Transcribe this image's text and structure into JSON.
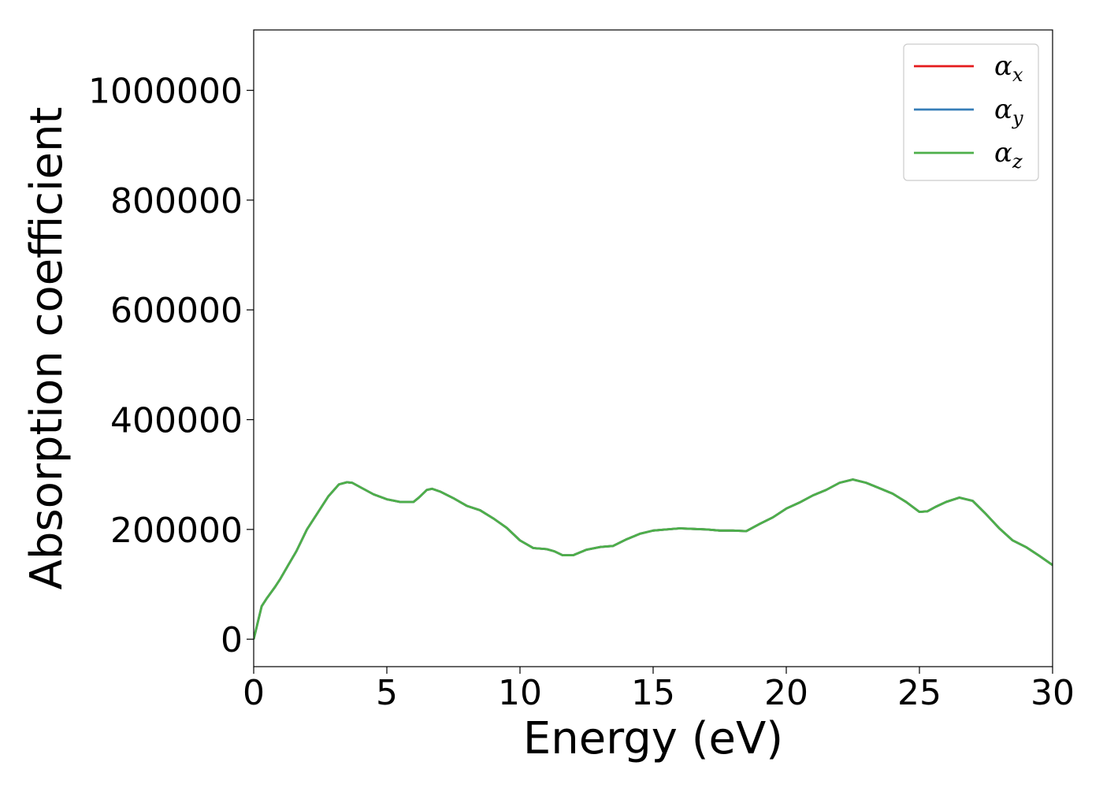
{
  "chart_data": {
    "type": "line",
    "title": "",
    "xlabel": "Energy (eV)",
    "ylabel": "Absorption coefficient",
    "xlim": [
      0,
      30
    ],
    "ylim": [
      -50000,
      1110000
    ],
    "xticks": [
      0,
      5,
      10,
      15,
      20,
      25,
      30
    ],
    "yticks": [
      0,
      200000,
      400000,
      600000,
      800000,
      1000000
    ],
    "xtick_labels": [
      "0",
      "5",
      "10",
      "15",
      "20",
      "25",
      "30"
    ],
    "ytick_labels": [
      "0",
      "200000",
      "400000",
      "600000",
      "800000",
      "1000000"
    ],
    "grid": false,
    "legend_position": "top-right",
    "series": [
      {
        "name": "α_x",
        "label_base": "α",
        "label_sub": "x",
        "color": "#e41a1c",
        "x": [
          0,
          0.1,
          0.3,
          0.5,
          0.8,
          1.0,
          1.3,
          1.6,
          2.0,
          2.4,
          2.8,
          3.2,
          3.5,
          3.7,
          4.0,
          4.5,
          5.0,
          5.5,
          6.0,
          6.2,
          6.5,
          6.7,
          7.0,
          7.5,
          8.0,
          8.5,
          9.0,
          9.5,
          10.0,
          10.5,
          11.0,
          11.3,
          11.6,
          12.0,
          12.5,
          13.0,
          13.5,
          14.0,
          14.5,
          15.0,
          15.5,
          16.0,
          16.5,
          17.0,
          17.5,
          18.0,
          18.5,
          19.0,
          19.5,
          20.0,
          20.5,
          21.0,
          21.5,
          22.0,
          22.5,
          23.0,
          23.5,
          24.0,
          24.5,
          25.0,
          25.3,
          25.6,
          26.0,
          26.5,
          27.0,
          27.5,
          28.0,
          28.5,
          29.0,
          29.5,
          30.0
        ],
        "y": [
          0,
          20000,
          60000,
          75000,
          95000,
          110000,
          135000,
          160000,
          200000,
          230000,
          260000,
          282000,
          286000,
          285000,
          277000,
          264000,
          255000,
          250000,
          250000,
          258000,
          272000,
          274000,
          269000,
          257000,
          243000,
          235000,
          220000,
          203000,
          180000,
          166000,
          164000,
          160000,
          153000,
          153000,
          163000,
          168000,
          170000,
          182000,
          192000,
          198000,
          200000,
          202000,
          201000,
          200000,
          198000,
          198000,
          197000,
          210000,
          222000,
          238000,
          249000,
          262000,
          272000,
          285000,
          291000,
          285000,
          275000,
          265000,
          250000,
          232000,
          233000,
          241000,
          250000,
          258000,
          252000,
          228000,
          202000,
          180000,
          168000,
          152000,
          135000
        ]
      },
      {
        "name": "α_y",
        "label_base": "α",
        "label_sub": "y",
        "color": "#377eb8",
        "x": [
          0,
          0.1,
          0.3,
          0.5,
          0.8,
          1.0,
          1.3,
          1.6,
          2.0,
          2.4,
          2.8,
          3.2,
          3.5,
          3.7,
          4.0,
          4.5,
          5.0,
          5.5,
          6.0,
          6.2,
          6.5,
          6.7,
          7.0,
          7.5,
          8.0,
          8.5,
          9.0,
          9.5,
          10.0,
          10.5,
          11.0,
          11.3,
          11.6,
          12.0,
          12.5,
          13.0,
          13.5,
          14.0,
          14.5,
          15.0,
          15.5,
          16.0,
          16.5,
          17.0,
          17.5,
          18.0,
          18.5,
          19.0,
          19.5,
          20.0,
          20.5,
          21.0,
          21.5,
          22.0,
          22.5,
          23.0,
          23.5,
          24.0,
          24.5,
          25.0,
          25.3,
          25.6,
          26.0,
          26.5,
          27.0,
          27.5,
          28.0,
          28.5,
          29.0,
          29.5,
          30.0
        ],
        "y": [
          0,
          20000,
          60000,
          75000,
          95000,
          110000,
          135000,
          160000,
          200000,
          230000,
          260000,
          282000,
          286000,
          285000,
          277000,
          264000,
          255000,
          250000,
          250000,
          258000,
          272000,
          274000,
          269000,
          257000,
          243000,
          235000,
          220000,
          203000,
          180000,
          166000,
          164000,
          160000,
          153000,
          153000,
          163000,
          168000,
          170000,
          182000,
          192000,
          198000,
          200000,
          202000,
          201000,
          200000,
          198000,
          198000,
          197000,
          210000,
          222000,
          238000,
          249000,
          262000,
          272000,
          285000,
          291000,
          285000,
          275000,
          265000,
          250000,
          232000,
          233000,
          241000,
          250000,
          258000,
          252000,
          228000,
          202000,
          180000,
          168000,
          152000,
          135000
        ]
      },
      {
        "name": "α_z",
        "label_base": "α",
        "label_sub": "z",
        "color": "#4daf4a",
        "x": [
          0,
          0.1,
          0.3,
          0.5,
          0.8,
          1.0,
          1.3,
          1.6,
          2.0,
          2.4,
          2.8,
          3.2,
          3.5,
          3.7,
          4.0,
          4.5,
          5.0,
          5.5,
          6.0,
          6.2,
          6.5,
          6.7,
          7.0,
          7.5,
          8.0,
          8.5,
          9.0,
          9.5,
          10.0,
          10.5,
          11.0,
          11.3,
          11.6,
          12.0,
          12.5,
          13.0,
          13.5,
          14.0,
          14.5,
          15.0,
          15.5,
          16.0,
          16.5,
          17.0,
          17.5,
          18.0,
          18.5,
          19.0,
          19.5,
          20.0,
          20.5,
          21.0,
          21.5,
          22.0,
          22.5,
          23.0,
          23.5,
          24.0,
          24.5,
          25.0,
          25.3,
          25.6,
          26.0,
          26.5,
          27.0,
          27.5,
          28.0,
          28.5,
          29.0,
          29.5,
          30.0
        ],
        "y": [
          0,
          20000,
          60000,
          75000,
          95000,
          110000,
          135000,
          160000,
          200000,
          230000,
          260000,
          282000,
          286000,
          285000,
          277000,
          264000,
          255000,
          250000,
          250000,
          258000,
          272000,
          274000,
          269000,
          257000,
          243000,
          235000,
          220000,
          203000,
          180000,
          166000,
          164000,
          160000,
          153000,
          153000,
          163000,
          168000,
          170000,
          182000,
          192000,
          198000,
          200000,
          202000,
          201000,
          200000,
          198000,
          198000,
          197000,
          210000,
          222000,
          238000,
          249000,
          262000,
          272000,
          285000,
          291000,
          285000,
          275000,
          265000,
          250000,
          232000,
          233000,
          241000,
          250000,
          258000,
          252000,
          228000,
          202000,
          180000,
          168000,
          152000,
          135000
        ]
      }
    ]
  }
}
